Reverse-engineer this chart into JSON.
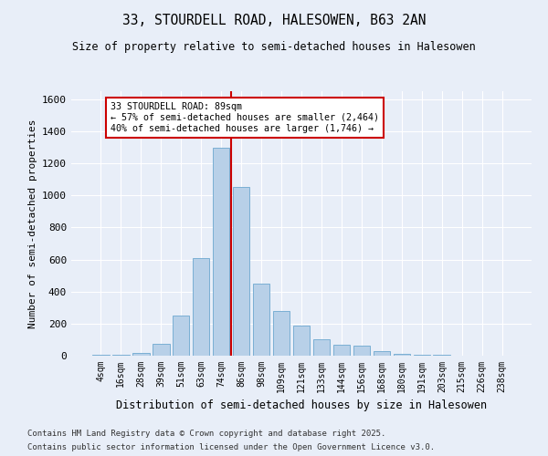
{
  "title1": "33, STOURDELL ROAD, HALESOWEN, B63 2AN",
  "title2": "Size of property relative to semi-detached houses in Halesowen",
  "xlabel": "Distribution of semi-detached houses by size in Halesowen",
  "ylabel": "Number of semi-detached properties",
  "bar_color": "#b8d0e8",
  "bar_edge_color": "#7aafd4",
  "bg_color": "#e8eef8",
  "grid_color": "#ffffff",
  "annotation_line_color": "#cc0000",
  "annotation_box_color": "#cc0000",
  "bins": [
    "4sqm",
    "16sqm",
    "28sqm",
    "39sqm",
    "51sqm",
    "63sqm",
    "74sqm",
    "86sqm",
    "98sqm",
    "109sqm",
    "121sqm",
    "133sqm",
    "144sqm",
    "156sqm",
    "168sqm",
    "180sqm",
    "191sqm",
    "203sqm",
    "215sqm",
    "226sqm",
    "238sqm"
  ],
  "values": [
    5,
    8,
    15,
    75,
    250,
    610,
    1300,
    1050,
    450,
    280,
    190,
    100,
    70,
    60,
    30,
    10,
    5,
    3,
    2,
    2,
    2
  ],
  "property_line_x": 7,
  "annotation_text": "33 STOURDELL ROAD: 89sqm\n← 57% of semi-detached houses are smaller (2,464)\n40% of semi-detached houses are larger (1,746) →",
  "ylim": [
    0,
    1650
  ],
  "yticks": [
    0,
    200,
    400,
    600,
    800,
    1000,
    1200,
    1400,
    1600
  ],
  "footnote1": "Contains HM Land Registry data © Crown copyright and database right 2025.",
  "footnote2": "Contains public sector information licensed under the Open Government Licence v3.0."
}
